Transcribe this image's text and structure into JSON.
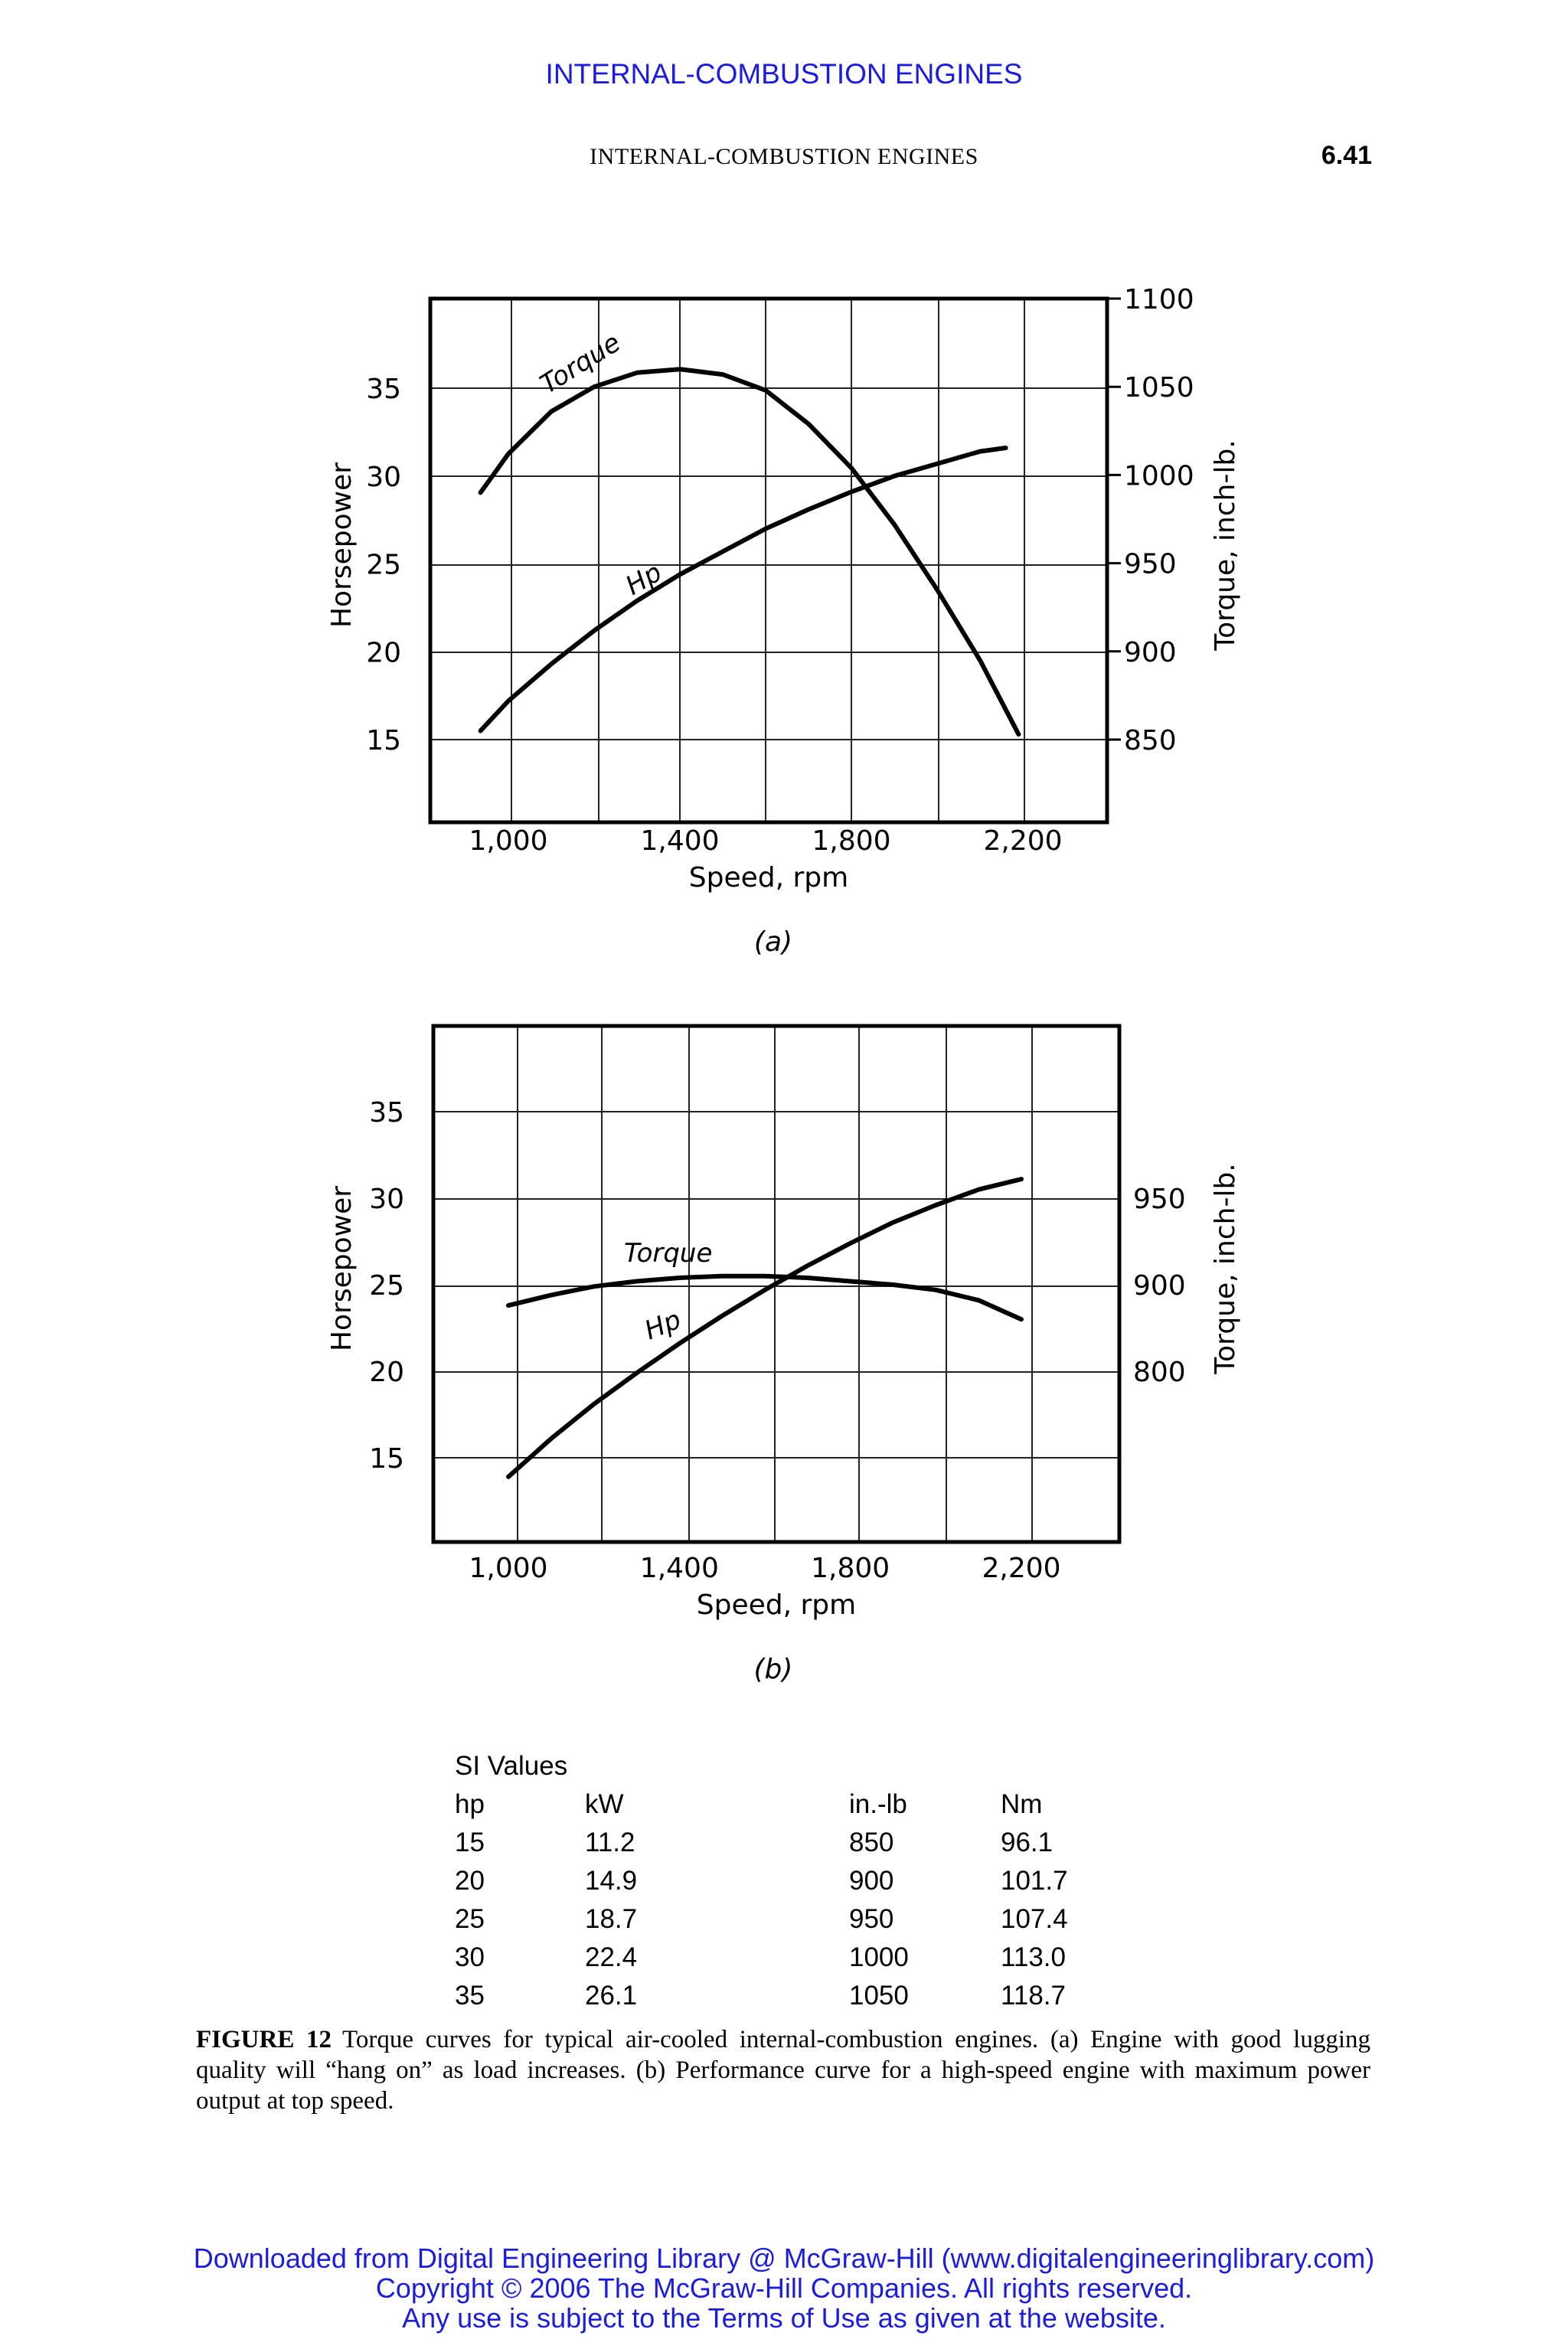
{
  "header": {
    "banner": "INTERNAL-COMBUSTION ENGINES",
    "running_head": "INTERNAL-COMBUSTION ENGINES",
    "page_number": "6.41"
  },
  "chart_data": [
    {
      "id": "a",
      "type": "line",
      "panel_label": "(a)",
      "xlabel": "Speed, rpm",
      "ylabel": "Horsepower",
      "ylabel_right": "Torque, inch-lb.",
      "xlim": [
        910,
        2250
      ],
      "x_ticks": [
        1000,
        1400,
        1800,
        2200
      ],
      "x_tick_labels": [
        "1,000",
        "1,400",
        "1,800",
        "2,200"
      ],
      "ylim": [
        10,
        40
      ],
      "y_ticks": [
        15,
        20,
        25,
        30,
        35
      ],
      "y2lim": [
        810,
        1100
      ],
      "y2_ticks": [
        850,
        900,
        950,
        1000,
        1050,
        1100
      ],
      "grid": true,
      "series": [
        {
          "name": "Torque",
          "axis": "right",
          "x": [
            935,
            1000,
            1100,
            1200,
            1300,
            1400,
            1500,
            1600,
            1700,
            1800,
            1900,
            2000,
            2100,
            2190
          ],
          "y": [
            990,
            1012,
            1036,
            1050,
            1058,
            1060,
            1057,
            1048,
            1029,
            1004,
            972,
            935,
            895,
            853
          ]
        },
        {
          "name": "Hp",
          "axis": "left",
          "x": [
            935,
            1000,
            1100,
            1200,
            1300,
            1400,
            1500,
            1600,
            1700,
            1800,
            1900,
            2000,
            2100,
            2160
          ],
          "y": [
            15.5,
            17.2,
            19.3,
            21.2,
            22.9,
            24.4,
            25.7,
            27.0,
            28.1,
            29.1,
            30.0,
            30.7,
            31.4,
            31.6
          ]
        }
      ]
    },
    {
      "id": "b",
      "type": "line",
      "panel_label": "(b)",
      "xlabel": "Speed, rpm",
      "ylabel": "Horsepower",
      "ylabel_right": "Torque, inch-lb.",
      "xlim": [
        850,
        2210
      ],
      "x_ticks": [
        1000,
        1400,
        1800,
        2200
      ],
      "x_tick_labels": [
        "1,000",
        "1,400",
        "1,800",
        "2,200"
      ],
      "ylim": [
        10,
        40
      ],
      "y_ticks": [
        15,
        20,
        25,
        30,
        35
      ],
      "y2_ticks": [
        800,
        900,
        950
      ],
      "y2_pos": [
        20,
        25,
        30
      ],
      "grid": true,
      "series": [
        {
          "name": "Torque",
          "axis": "left",
          "x": [
            1000,
            1100,
            1200,
            1300,
            1400,
            1500,
            1600,
            1700,
            1800,
            1900,
            2000,
            2100,
            2200
          ],
          "y": [
            23.8,
            24.4,
            24.9,
            25.2,
            25.4,
            25.5,
            25.5,
            25.4,
            25.2,
            25.0,
            24.7,
            24.1,
            23.0
          ]
        },
        {
          "name": "Hp",
          "axis": "left",
          "x": [
            1000,
            1100,
            1200,
            1300,
            1400,
            1500,
            1600,
            1700,
            1800,
            1900,
            2000,
            2100,
            2200
          ],
          "y": [
            13.9,
            16.1,
            18.1,
            19.9,
            21.6,
            23.2,
            24.7,
            26.1,
            27.4,
            28.6,
            29.6,
            30.5,
            31.1
          ]
        }
      ]
    }
  ],
  "si_values": {
    "title": "SI Values",
    "headers": [
      "hp",
      "kW",
      "in.-lb",
      "Nm"
    ],
    "rows": [
      [
        "15",
        "11.2",
        "850",
        "96.1"
      ],
      [
        "20",
        "14.9",
        "900",
        "101.7"
      ],
      [
        "25",
        "18.7",
        "950",
        "107.4"
      ],
      [
        "30",
        "22.4",
        "1000",
        "113.0"
      ],
      [
        "35",
        "26.1",
        "1050",
        "118.7"
      ]
    ]
  },
  "caption": {
    "label": "FIGURE 12",
    "text": "Torque curves for typical air-cooled internal-combustion engines. (a) Engine with good lugging quality will “hang on” as load increases. (b) Performance curve for a high-speed engine with maximum power output at top speed."
  },
  "footer": {
    "line1": "Downloaded from Digital Engineering Library @ McGraw-Hill (www.digitalengineeringlibrary.com)",
    "line2": "Copyright © 2006 The McGraw-Hill Companies. All rights reserved.",
    "line3": "Any use is subject to the Terms of Use as given at the website."
  }
}
